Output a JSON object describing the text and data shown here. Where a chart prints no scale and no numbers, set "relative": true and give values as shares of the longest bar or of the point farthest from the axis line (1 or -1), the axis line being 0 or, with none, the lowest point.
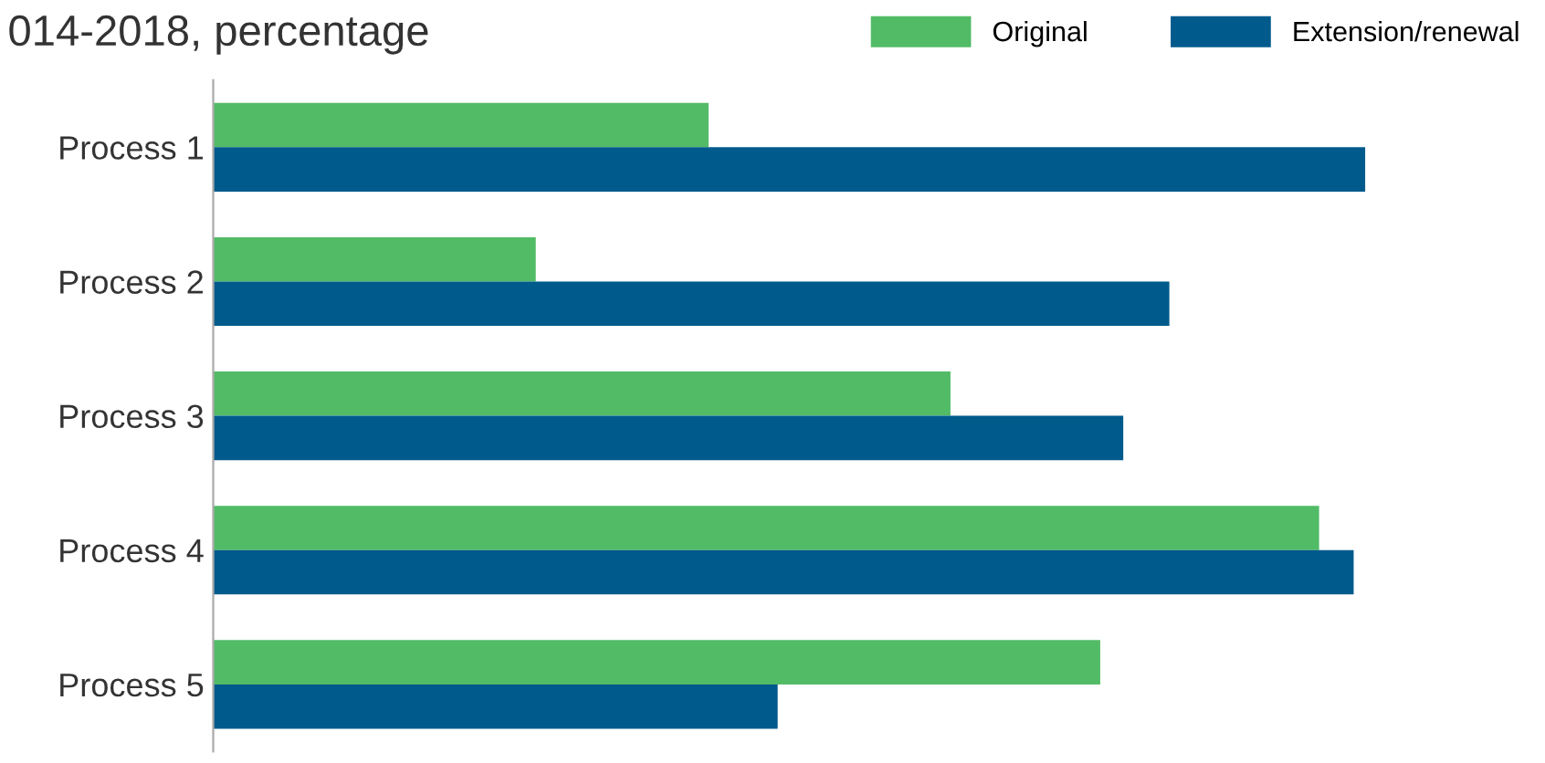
{
  "chart_data": {
    "type": "bar",
    "orientation": "horizontal",
    "relative": true,
    "title": "014-2018, percentage",
    "categories": [
      "Process 1",
      "Process 2",
      "Process 3",
      "Process 4",
      "Process 5"
    ],
    "series": [
      {
        "name": "Original",
        "color": "#52bb66",
        "values": [
          0.43,
          0.28,
          0.64,
          0.96,
          0.77
        ]
      },
      {
        "name": "Extension/renewal",
        "color": "#005a8c",
        "values": [
          1.0,
          0.83,
          0.79,
          0.99,
          0.49
        ]
      }
    ],
    "legend": "top right",
    "grid": false
  }
}
